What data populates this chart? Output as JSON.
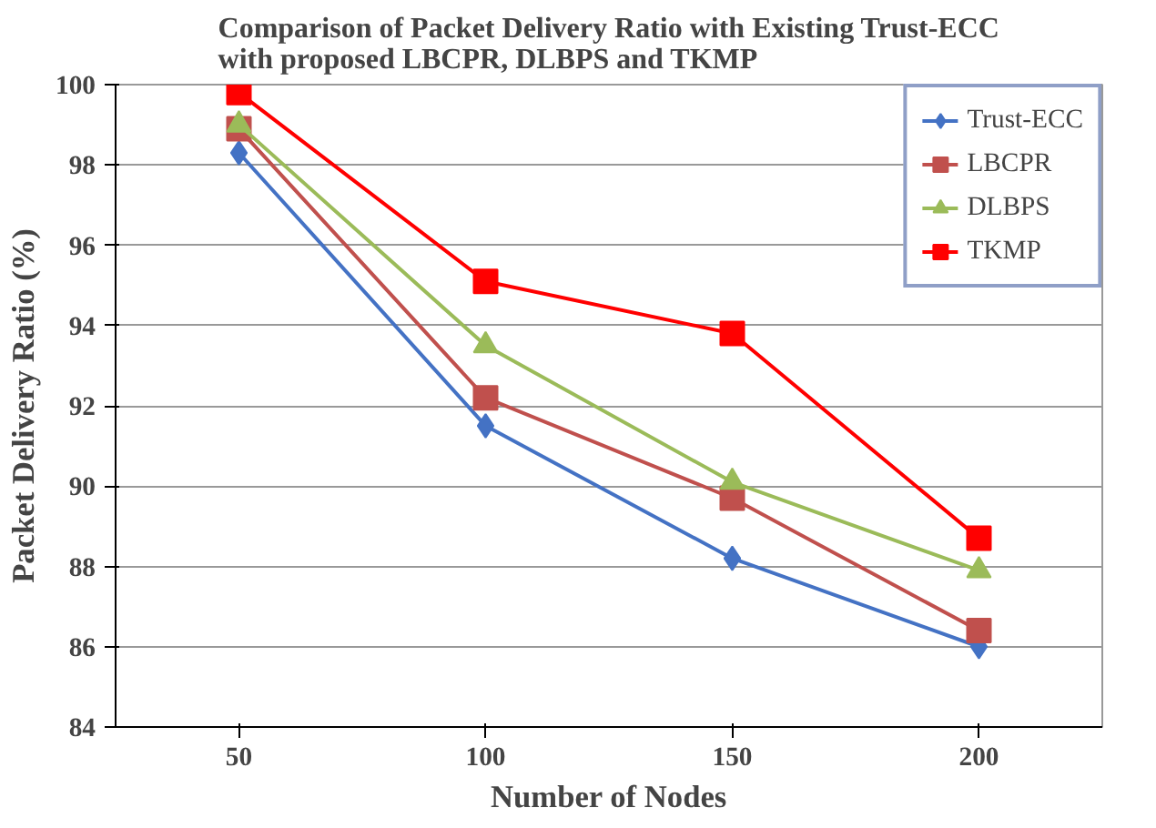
{
  "chart_data": {
    "type": "line",
    "title": "Comparison of Packet Delivery Ratio with Existing Trust-ECC with proposed LBCPR, DLBPS and TKMP",
    "xlabel": "Number of Nodes",
    "ylabel": "Packet Delivery Ratio (%)",
    "categories": [
      "50",
      "100",
      "150",
      "200"
    ],
    "ylim": [
      84,
      100
    ],
    "yticks": [
      84,
      86,
      88,
      90,
      92,
      94,
      96,
      98,
      100
    ],
    "grid": "y",
    "legend": "right",
    "series": [
      {
        "name": "Trust-ECC",
        "color": "#4472c4",
        "marker": "diamond",
        "values": [
          98.3,
          91.5,
          88.2,
          86.0
        ]
      },
      {
        "name": "LBCPR",
        "color": "#c0504d",
        "marker": "square",
        "values": [
          98.9,
          92.2,
          89.7,
          86.4
        ]
      },
      {
        "name": "DLBPS",
        "color": "#9bbb59",
        "marker": "triangle",
        "values": [
          99.0,
          93.5,
          90.1,
          87.9
        ]
      },
      {
        "name": "TKMP",
        "color": "#ff0000",
        "marker": "square",
        "values": [
          99.8,
          95.1,
          93.8,
          88.7
        ]
      }
    ]
  }
}
